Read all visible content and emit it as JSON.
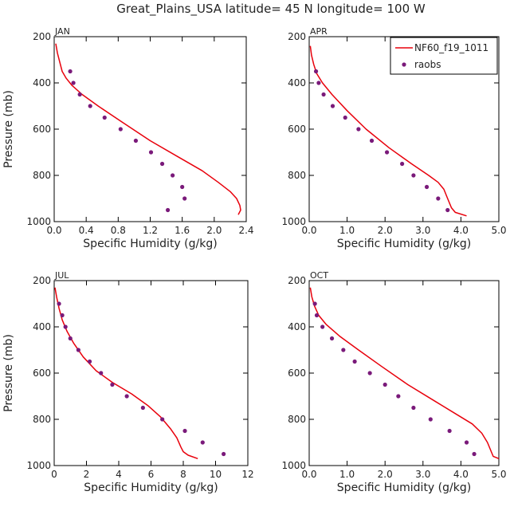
{
  "suptitle": "Great_Plains_USA  latitude= 45 N longitude= 100 W",
  "legend": {
    "model_label": "NF60_f19_1011",
    "obs_label": "raobs"
  },
  "colors": {
    "model": "#e8000b",
    "obs": "#7a1a7a"
  },
  "chart_data": [
    {
      "type": "line",
      "title": "JAN",
      "xlabel": "Specific Humidity (g/kg)",
      "ylabel": "Pressure (mb)",
      "xlim": [
        0,
        2.4
      ],
      "ylim": [
        1000,
        200
      ],
      "xticks": [
        0.0,
        0.4,
        0.8,
        1.2,
        1.6,
        2.0,
        2.4
      ],
      "xticklabels": [
        "0.0",
        "0.4",
        "0.8",
        "1.2",
        "1.6",
        "2.0",
        "2.4"
      ],
      "yticks": [
        200,
        400,
        600,
        800,
        1000
      ],
      "yticklabels": [
        "200",
        "400",
        "600",
        "800",
        "1000"
      ],
      "model": {
        "name": "NF60_f19_1011",
        "x": [
          0.02,
          0.04,
          0.07,
          0.1,
          0.15,
          0.22,
          0.35,
          0.55,
          0.85,
          1.2,
          1.55,
          1.85,
          2.05,
          2.2,
          2.28,
          2.32,
          2.33,
          2.3
        ],
        "y": [
          230,
          270,
          310,
          350,
          380,
          410,
          450,
          500,
          570,
          650,
          720,
          780,
          830,
          870,
          900,
          930,
          950,
          970
        ]
      },
      "obs": {
        "name": "raobs",
        "x": [
          0.2,
          0.24,
          0.32,
          0.45,
          0.63,
          0.83,
          1.02,
          1.21,
          1.35,
          1.48,
          1.6,
          1.63,
          1.42
        ],
        "y": [
          350,
          400,
          450,
          500,
          550,
          600,
          650,
          700,
          750,
          800,
          850,
          900,
          950
        ]
      }
    },
    {
      "type": "line",
      "title": "APR",
      "xlabel": "Specific Humidity (g/kg)",
      "ylabel": "",
      "xlim": [
        0,
        5
      ],
      "ylim": [
        1000,
        200
      ],
      "xticks": [
        0,
        1,
        2,
        3,
        4,
        5
      ],
      "xticklabels": [
        "0.0",
        "1.0",
        "2.0",
        "3.0",
        "4.0",
        "5.0"
      ],
      "yticks": [
        200,
        400,
        600,
        800,
        1000
      ],
      "yticklabels": [
        "200",
        "400",
        "600",
        "800",
        "1000"
      ],
      "legend": true,
      "model": {
        "name": "NF60_f19_1011",
        "x": [
          0.03,
          0.06,
          0.12,
          0.2,
          0.35,
          0.6,
          1.0,
          1.5,
          2.1,
          2.7,
          3.15,
          3.4,
          3.55,
          3.65,
          3.75,
          3.85,
          4.15
        ],
        "y": [
          240,
          280,
          320,
          360,
          400,
          450,
          520,
          600,
          680,
          750,
          800,
          830,
          860,
          900,
          940,
          960,
          975
        ]
      },
      "obs": {
        "name": "raobs",
        "x": [
          0.18,
          0.25,
          0.38,
          0.62,
          0.95,
          1.3,
          1.65,
          2.05,
          2.45,
          2.75,
          3.1,
          3.4,
          3.65
        ],
        "y": [
          350,
          400,
          450,
          500,
          550,
          600,
          650,
          700,
          750,
          800,
          850,
          900,
          950
        ]
      }
    },
    {
      "type": "line",
      "title": "JUL",
      "xlabel": "Specific Humidity (g/kg)",
      "ylabel": "Pressure (mb)",
      "xlim": [
        0,
        12
      ],
      "ylim": [
        1000,
        200
      ],
      "xticks": [
        0,
        2,
        4,
        6,
        8,
        10,
        12
      ],
      "xticklabels": [
        "0",
        "2",
        "4",
        "6",
        "8",
        "10",
        "12"
      ],
      "yticks": [
        200,
        400,
        600,
        800,
        1000
      ],
      "yticklabels": [
        "200",
        "400",
        "600",
        "800",
        "1000"
      ],
      "model": {
        "name": "NF60_f19_1011",
        "x": [
          0.05,
          0.15,
          0.3,
          0.5,
          0.8,
          1.2,
          1.8,
          2.6,
          3.6,
          4.8,
          5.8,
          6.6,
          7.2,
          7.6,
          7.85,
          8.0,
          8.3,
          8.9
        ],
        "y": [
          230,
          270,
          320,
          370,
          420,
          470,
          530,
          590,
          640,
          690,
          740,
          790,
          840,
          880,
          920,
          940,
          955,
          970
        ]
      },
      "obs": {
        "name": "raobs",
        "x": [
          0.3,
          0.5,
          0.7,
          1.0,
          1.5,
          2.2,
          2.9,
          3.6,
          4.5,
          5.5,
          6.7,
          8.1,
          9.2,
          10.5
        ],
        "y": [
          300,
          350,
          400,
          450,
          500,
          550,
          600,
          650,
          700,
          750,
          800,
          850,
          900,
          950
        ]
      }
    },
    {
      "type": "line",
      "title": "OCT",
      "xlabel": "Specific Humidity (g/kg)",
      "ylabel": "",
      "xlim": [
        0,
        5
      ],
      "ylim": [
        1000,
        200
      ],
      "xticks": [
        0,
        1,
        2,
        3,
        4,
        5
      ],
      "xticklabels": [
        "0.0",
        "1.0",
        "2.0",
        "3.0",
        "4.0",
        "5.0"
      ],
      "yticks": [
        200,
        400,
        600,
        800,
        1000
      ],
      "yticklabels": [
        "200",
        "400",
        "600",
        "800",
        "1000"
      ],
      "model": {
        "name": "NF60_f19_1011",
        "x": [
          0.03,
          0.07,
          0.14,
          0.25,
          0.45,
          0.8,
          1.3,
          1.9,
          2.6,
          3.3,
          3.9,
          4.3,
          4.55,
          4.7,
          4.8,
          4.85,
          5.0
        ],
        "y": [
          230,
          270,
          310,
          350,
          390,
          440,
          500,
          570,
          650,
          720,
          780,
          820,
          860,
          900,
          940,
          960,
          970
        ]
      },
      "obs": {
        "name": "raobs",
        "x": [
          0.15,
          0.2,
          0.35,
          0.6,
          0.9,
          1.2,
          1.6,
          2.0,
          2.35,
          2.75,
          3.2,
          3.7,
          4.15,
          4.35
        ],
        "y": [
          300,
          350,
          400,
          450,
          500,
          550,
          600,
          650,
          700,
          750,
          800,
          850,
          900,
          950
        ]
      }
    }
  ]
}
